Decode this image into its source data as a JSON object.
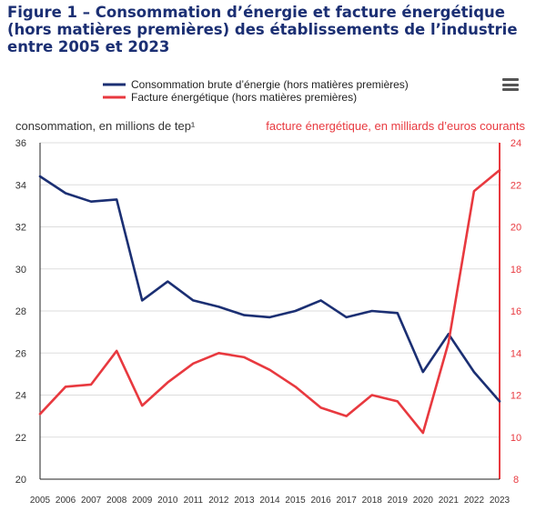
{
  "title": "Figure 1 – Consommation d’énergie et facture énergétique (hors matières premières) des établissements de l’industrie entre 2005 et 2023",
  "menu_icon": "hamburger-menu-icon",
  "colors": {
    "consumption": "#1b2f73",
    "bill": "#e8393f",
    "grid": "#dddddd",
    "title": "#1b2f73"
  },
  "chart_data": {
    "type": "line",
    "x": [
      "2005",
      "2006",
      "2007",
      "2008",
      "2009",
      "2010",
      "2011",
      "2012",
      "2013",
      "2014",
      "2015",
      "2016",
      "2017",
      "2018",
      "2019",
      "2020",
      "2021",
      "2022",
      "2023"
    ],
    "series": [
      {
        "name": "Consommation brute d’énergie (hors matières premières)",
        "axis": "left",
        "values": [
          34.4,
          33.6,
          33.2,
          33.3,
          28.5,
          29.4,
          28.5,
          28.2,
          27.8,
          27.7,
          28.0,
          28.5,
          27.7,
          28.0,
          27.9,
          25.1,
          26.9,
          25.1,
          23.7
        ]
      },
      {
        "name": "Facture énergétique (hors matières premières)",
        "axis": "right",
        "values": [
          11.1,
          12.4,
          12.5,
          14.1,
          11.5,
          12.6,
          13.5,
          14.0,
          13.8,
          13.2,
          12.4,
          11.4,
          11.0,
          12.0,
          11.7,
          10.2,
          14.5,
          21.7,
          22.7
        ]
      }
    ],
    "ylabel_left": "consommation, en millions de tep¹",
    "ylabel_right": "facture énergétique, en milliards d’euros courants",
    "ylim_left": [
      20,
      36
    ],
    "yticks_left": [
      20,
      22,
      24,
      26,
      28,
      30,
      32,
      34,
      36
    ],
    "ylim_right": [
      8,
      24
    ],
    "yticks_right": [
      8,
      10,
      12,
      14,
      16,
      18,
      20,
      22,
      24
    ],
    "grid": true,
    "legend_position": "top"
  }
}
